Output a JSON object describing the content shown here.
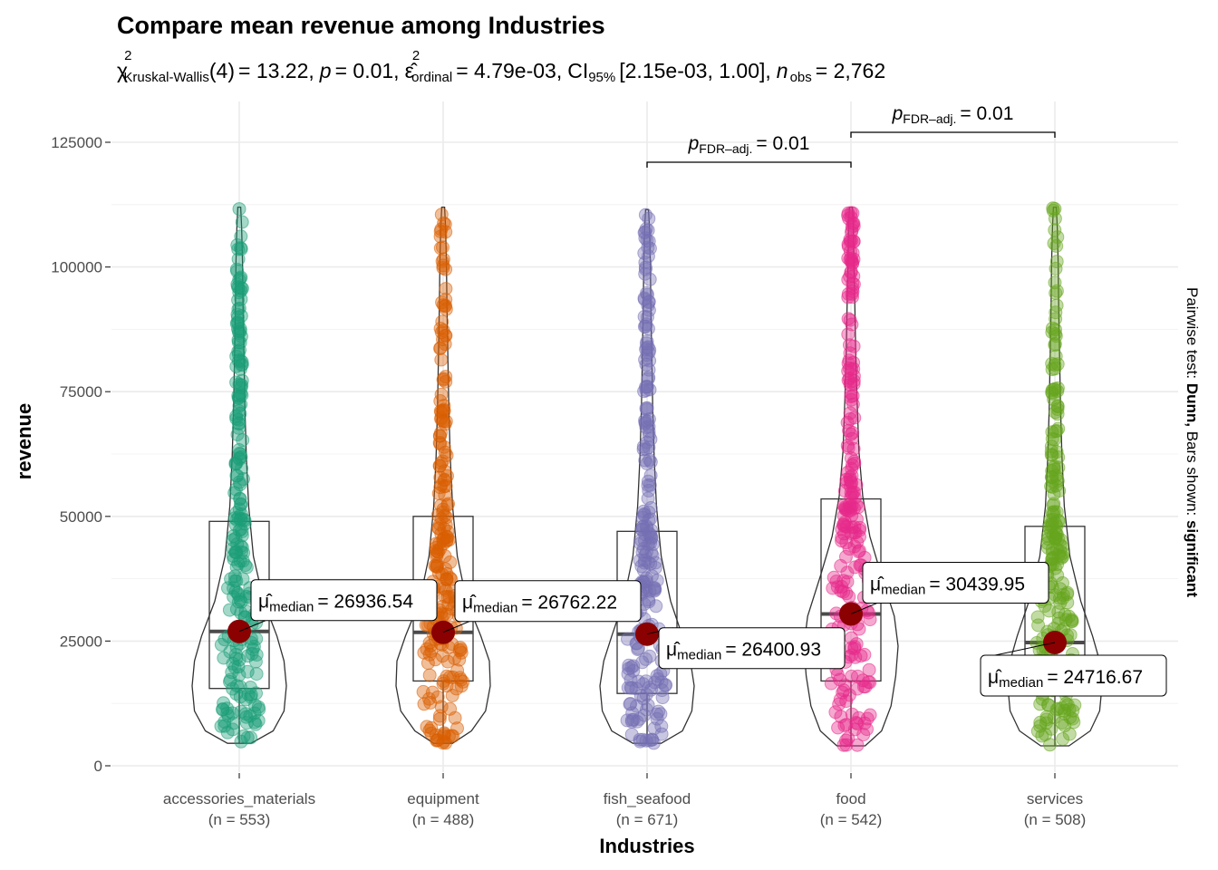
{
  "chart_data": {
    "type": "violin",
    "title": "Compare mean revenue among Industries",
    "subtitle": {
      "stat_symbol": "χ",
      "stat_sup": "2",
      "stat_sub": "Kruskal-Wallis",
      "df": "(4)",
      "stat_value": "= 13.22,",
      "p_symbol": "p",
      "p_value": "= 0.01,",
      "effect_symbol": "ε̂",
      "effect_sup": "2",
      "effect_sub": "ordinal",
      "effect_value": "= 4.79e-03,",
      "ci_label": "CI",
      "ci_sub": "95%",
      "ci_value": "[2.15e-03, 1.00],",
      "n_symbol": "n",
      "n_sub": "obs",
      "n_value": "= 2,762"
    },
    "xlabel": "Industries",
    "ylabel": "revenue",
    "ylim": [
      0,
      125000
    ],
    "yticks": [
      0,
      25000,
      50000,
      75000,
      100000,
      125000
    ],
    "ytick_labels": [
      "0",
      "25000",
      "50000",
      "75000",
      "100000",
      "125000"
    ],
    "grid": true,
    "caption": {
      "prefix": "Pairwise test: ",
      "test": "Dunn,",
      "middle": " Bars shown: ",
      "shown": "significant"
    },
    "groups": [
      {
        "category": "accessories_materials",
        "n_label": "(n = 553)",
        "color": "#1B9E77",
        "min": 4500,
        "q1": 15500,
        "median": 26936.54,
        "q3": 49000,
        "max": 112000,
        "median_label": "26936.54",
        "label_side": "right-up",
        "violin": [
          [
            4500,
            0.25
          ],
          [
            7000,
            0.72
          ],
          [
            11000,
            0.95
          ],
          [
            16000,
            1.0
          ],
          [
            21000,
            0.95
          ],
          [
            26000,
            0.8
          ],
          [
            33000,
            0.52
          ],
          [
            42000,
            0.3
          ],
          [
            52000,
            0.2
          ],
          [
            62000,
            0.15
          ],
          [
            72000,
            0.12
          ],
          [
            82000,
            0.1
          ],
          [
            92000,
            0.08
          ],
          [
            101000,
            0.07
          ],
          [
            108000,
            0.05
          ],
          [
            112000,
            0.03
          ]
        ]
      },
      {
        "category": "equipment",
        "n_label": "(n = 488)",
        "color": "#D95F02",
        "min": 4500,
        "q1": 17000,
        "median": 26762.22,
        "q3": 50000,
        "max": 112000,
        "median_label": "26762.22",
        "label_side": "right-up",
        "violin": [
          [
            4500,
            0.2
          ],
          [
            7000,
            0.6
          ],
          [
            11000,
            0.9
          ],
          [
            16000,
            1.0
          ],
          [
            21000,
            0.98
          ],
          [
            26000,
            0.8
          ],
          [
            33000,
            0.5
          ],
          [
            42000,
            0.3
          ],
          [
            52000,
            0.2
          ],
          [
            62000,
            0.15
          ],
          [
            72000,
            0.12
          ],
          [
            82000,
            0.1
          ],
          [
            92000,
            0.08
          ],
          [
            101000,
            0.07
          ],
          [
            108000,
            0.05
          ],
          [
            112000,
            0.03
          ]
        ]
      },
      {
        "category": "fish_seafood",
        "n_label": "(n = 671)",
        "color": "#7570B3",
        "min": 4500,
        "q1": 14500,
        "median": 26400.93,
        "q3": 47000,
        "max": 111500,
        "median_label": "26400.93",
        "label_side": "right-down",
        "violin": [
          [
            4500,
            0.3
          ],
          [
            7000,
            0.75
          ],
          [
            11000,
            0.95
          ],
          [
            16000,
            1.0
          ],
          [
            21000,
            0.92
          ],
          [
            26000,
            0.75
          ],
          [
            33000,
            0.5
          ],
          [
            42000,
            0.3
          ],
          [
            52000,
            0.2
          ],
          [
            62000,
            0.15
          ],
          [
            72000,
            0.12
          ],
          [
            82000,
            0.1
          ],
          [
            92000,
            0.08
          ],
          [
            101000,
            0.07
          ],
          [
            108000,
            0.05
          ],
          [
            111500,
            0.03
          ]
        ]
      },
      {
        "category": "food",
        "n_label": "(n = 542)",
        "color": "#E7298A",
        "min": 4000,
        "q1": 17000,
        "median": 30439.95,
        "q3": 53500,
        "max": 112000,
        "median_label": "30439.95",
        "label_side": "right-up",
        "violin": [
          [
            4000,
            0.3
          ],
          [
            7000,
            0.65
          ],
          [
            12000,
            0.85
          ],
          [
            18000,
            0.95
          ],
          [
            24000,
            1.0
          ],
          [
            30000,
            0.92
          ],
          [
            38000,
            0.65
          ],
          [
            46000,
            0.4
          ],
          [
            54000,
            0.25
          ],
          [
            63000,
            0.17
          ],
          [
            73000,
            0.13
          ],
          [
            83000,
            0.1
          ],
          [
            93000,
            0.08
          ],
          [
            102000,
            0.06
          ],
          [
            109000,
            0.05
          ],
          [
            112000,
            0.03
          ]
        ]
      },
      {
        "category": "services",
        "n_label": "(n = 508)",
        "color": "#66A61E",
        "min": 4000,
        "q1": 16000,
        "median": 24716.67,
        "q3": 48000,
        "max": 112000,
        "median_label": "24716.67",
        "label_side": "left-down",
        "violin": [
          [
            4000,
            0.3
          ],
          [
            7000,
            0.75
          ],
          [
            11000,
            0.95
          ],
          [
            16000,
            1.0
          ],
          [
            21000,
            0.95
          ],
          [
            26000,
            0.8
          ],
          [
            33000,
            0.55
          ],
          [
            42000,
            0.32
          ],
          [
            52000,
            0.2
          ],
          [
            62000,
            0.15
          ],
          [
            72000,
            0.12
          ],
          [
            82000,
            0.1
          ],
          [
            92000,
            0.08
          ],
          [
            101000,
            0.07
          ],
          [
            108000,
            0.05
          ],
          [
            112000,
            0.03
          ]
        ]
      }
    ],
    "pairwise": [
      {
        "from": "fish_seafood",
        "to": "food",
        "level": 121000,
        "p_symbol": "p",
        "p_sub": "FDR–adj.",
        "p_value": "= 0.01"
      },
      {
        "from": "food",
        "to": "services",
        "level": 127000,
        "p_symbol": "p",
        "p_sub": "FDR–adj.",
        "p_value": "= 0.01"
      }
    ],
    "median_symbol": "μ̂",
    "median_sub": "median",
    "median_eq": "="
  }
}
